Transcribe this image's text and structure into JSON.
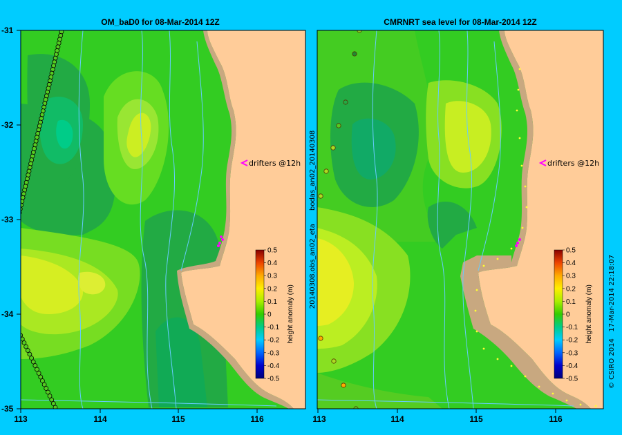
{
  "chart_data": [
    {
      "type": "heatmap",
      "title": "OM_baD0  for 08-Mar-2014 12Z",
      "x_ticks": [
        "113",
        "114",
        "115",
        "116"
      ],
      "y_ticks": [
        "-31",
        "-32",
        "-33",
        "-34",
        "-35"
      ],
      "xlim": [
        113,
        116.7
      ],
      "ylim": [
        -35,
        -31
      ],
      "annotation": "drifters @12h",
      "colorbar": {
        "label": "height anomaly (m)",
        "ticks": [
          "0.5",
          "0.4",
          "0.3",
          "0.2",
          "0.1",
          "0",
          "-0.1",
          "-0.2",
          "-0.3",
          "-0.4",
          "-0.5"
        ],
        "range": [
          -0.5,
          0.5
        ]
      }
    },
    {
      "type": "heatmap",
      "title": "CMRNRT sea level  for 08-Mar-2014 12Z",
      "x_ticks": [
        "113",
        "114",
        "115",
        "116"
      ],
      "xlim": [
        113,
        116.7
      ],
      "ylim": [
        -35,
        -31
      ],
      "annotation": "drifters @12h",
      "side_label": "20140308.obs_an02_eta      bodas_an02_20140308",
      "colorbar": {
        "label": "height anomaly (m)",
        "ticks": [
          "0.5",
          "0.4",
          "0.3",
          "0.2",
          "0.1",
          "0",
          "-0.1",
          "-0.2",
          "-0.3",
          "-0.4",
          "-0.5"
        ],
        "range": [
          -0.5,
          0.5
        ]
      }
    }
  ],
  "footer": "© CSIRO 2014   17-Mar-2014 22:18:07",
  "colors": {
    "background": "#00ccff",
    "land": "#ffcc99",
    "coast_shelf": "#c8a880",
    "drifter_marker": "#ff00ff"
  }
}
